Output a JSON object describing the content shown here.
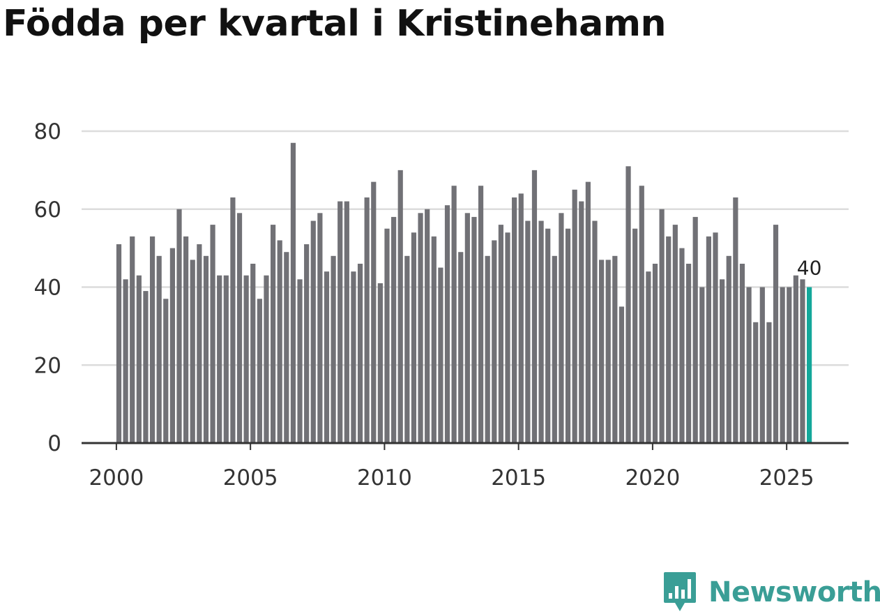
{
  "brand": {
    "name": "Newsworthy",
    "color": "#3a9e96"
  },
  "chart_data": {
    "type": "bar",
    "title": "Födda per kvartal i Kristinehamn",
    "xlabel": "",
    "ylabel": "",
    "ylim": [
      0,
      85
    ],
    "yticks": [
      0,
      20,
      40,
      60,
      80
    ],
    "xticks": [
      "2000",
      "2005",
      "2010",
      "2015",
      "2020",
      "2025"
    ],
    "x_start": "2000-Q1",
    "grid": true,
    "bar_color": "#717176",
    "highlight_color": "#13a79a",
    "last_value_label": "40",
    "values": [
      51,
      42,
      53,
      43,
      39,
      53,
      48,
      37,
      50,
      60,
      53,
      47,
      51,
      48,
      56,
      43,
      43,
      63,
      59,
      43,
      46,
      37,
      43,
      56,
      52,
      49,
      77,
      42,
      51,
      57,
      59,
      44,
      48,
      62,
      62,
      44,
      46,
      63,
      67,
      41,
      55,
      58,
      70,
      48,
      54,
      59,
      60,
      53,
      45,
      61,
      66,
      49,
      59,
      58,
      66,
      48,
      52,
      56,
      54,
      63,
      64,
      57,
      70,
      57,
      55,
      48,
      59,
      55,
      65,
      62,
      67,
      57,
      47,
      47,
      48,
      35,
      71,
      55,
      66,
      44,
      46,
      60,
      53,
      56,
      50,
      46,
      58,
      40,
      53,
      54,
      42,
      48,
      63,
      46,
      40,
      31,
      40,
      31,
      56,
      40,
      40,
      43,
      42,
      40
    ]
  }
}
